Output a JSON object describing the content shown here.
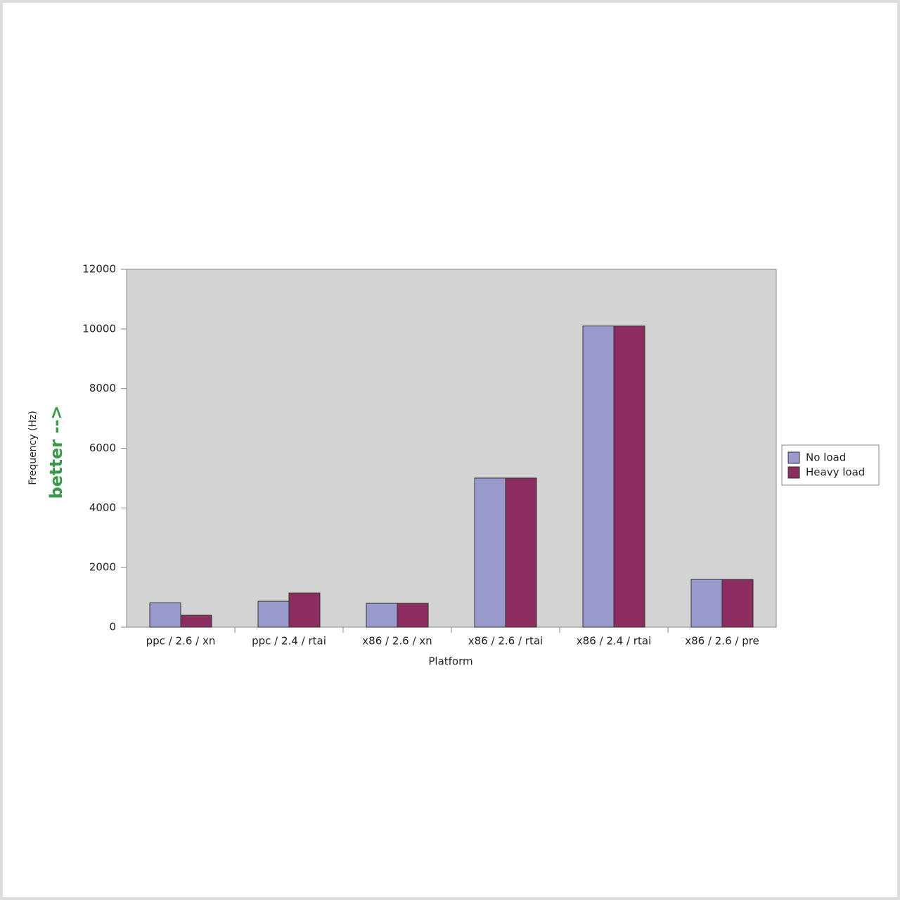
{
  "chart_data": {
    "type": "bar",
    "x_label": "Platform",
    "y_label": "Frequency (Hz)",
    "annotation": "better -->",
    "categories": [
      "ppc / 2.6 / xn",
      "ppc / 2.4 / rtai",
      "x86 / 2.6 / xn",
      "x86 / 2.6 / rtai",
      "x86 / 2.4 / rtai",
      "x86 / 2.6 / pre"
    ],
    "series": [
      {
        "name": "No load",
        "color": "#9999cc",
        "values": [
          820,
          870,
          800,
          5000,
          10100,
          1600
        ]
      },
      {
        "name": "Heavy load",
        "color": "#8b2d5e",
        "values": [
          400,
          1150,
          800,
          5000,
          10100,
          1600
        ]
      }
    ],
    "ylim": [
      0,
      12000
    ],
    "yticks": [
      0,
      2000,
      4000,
      6000,
      8000,
      10000,
      12000
    ],
    "legend": "right"
  }
}
